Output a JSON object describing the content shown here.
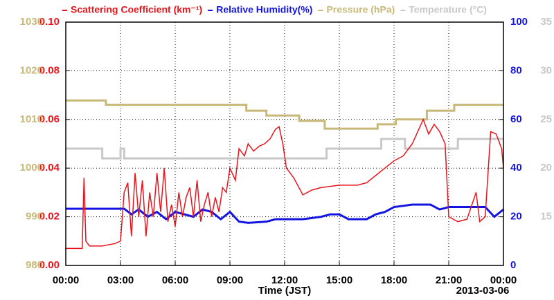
{
  "chart_data": {
    "type": "line",
    "xlabel": "Time (JST)",
    "date_label": "2013-03-06",
    "xlim": [
      0,
      24
    ],
    "xticks": [
      {
        "value": 0,
        "label": "00:00"
      },
      {
        "value": 3,
        "label": "03:00"
      },
      {
        "value": 6,
        "label": "06:00"
      },
      {
        "value": 9,
        "label": "09:00"
      },
      {
        "value": 12,
        "label": "12:00"
      },
      {
        "value": 15,
        "label": "15:00"
      },
      {
        "value": 18,
        "label": "18:00"
      },
      {
        "value": 21,
        "label": "21:00"
      },
      {
        "value": 24,
        "label": "00:00"
      }
    ],
    "grid": true,
    "ylim": [
      0,
      0.1
    ],
    "yticks": [
      {
        "value": 0,
        "label": "0.00"
      },
      {
        "value": 0.02,
        "label": "0.02"
      },
      {
        "value": 0.04,
        "label": "0.04"
      },
      {
        "value": 0.06,
        "label": "0.06"
      },
      {
        "value": 0.08,
        "label": "0.08"
      },
      {
        "value": 0.1,
        "label": "0.10"
      }
    ],
    "y2lim": [
      0,
      100
    ],
    "y2ticks": [
      0,
      20,
      40,
      60,
      80,
      100
    ],
    "y3lim": [
      980,
      1030
    ],
    "y3ticks": [
      980,
      990,
      1000,
      1010,
      1020,
      1030
    ],
    "y4lim": [
      10,
      35
    ],
    "y4ticks": [
      15,
      20,
      25,
      30,
      35
    ],
    "series": [
      {
        "name": "Scattering Coefficient (km⁻¹)",
        "color": "#e8141c",
        "axis": "y",
        "x": [
          0,
          0.9,
          1,
          1.1,
          1.3,
          2,
          2.7,
          3,
          3.2,
          3.4,
          3.6,
          3.8,
          4,
          4.2,
          4.4,
          4.6,
          4.8,
          5,
          5.2,
          5.4,
          5.6,
          5.8,
          6,
          6.2,
          6.4,
          6.6,
          6.8,
          7,
          7.2,
          7.4,
          7.6,
          7.8,
          8,
          8.2,
          8.4,
          8.6,
          8.8,
          9,
          9.3,
          9.5,
          9.8,
          10,
          10.3,
          10.6,
          10.9,
          11.2,
          11.5,
          11.7,
          11.9,
          12.1,
          12.5,
          13,
          13.5,
          14,
          15,
          16,
          16.5,
          17,
          17.5,
          18,
          18.5,
          19,
          19.3,
          19.6,
          19.9,
          20.2,
          20.5,
          20.8,
          21,
          21.5,
          22,
          22.5,
          22.7,
          23,
          23.3,
          23.6,
          23.9,
          24
        ],
        "values": [
          0.007,
          0.007,
          0.036,
          0.01,
          0.008,
          0.008,
          0.009,
          0.01,
          0.03,
          0.034,
          0.012,
          0.038,
          0.02,
          0.035,
          0.012,
          0.03,
          0.02,
          0.038,
          0.022,
          0.04,
          0.018,
          0.025,
          0.016,
          0.03,
          0.02,
          0.028,
          0.032,
          0.02,
          0.035,
          0.018,
          0.025,
          0.03,
          0.02,
          0.028,
          0.022,
          0.032,
          0.03,
          0.04,
          0.035,
          0.048,
          0.045,
          0.05,
          0.047,
          0.049,
          0.05,
          0.052,
          0.056,
          0.057,
          0.05,
          0.04,
          0.036,
          0.029,
          0.031,
          0.032,
          0.033,
          0.033,
          0.034,
          0.037,
          0.04,
          0.043,
          0.045,
          0.05,
          0.055,
          0.06,
          0.054,
          0.058,
          0.055,
          0.05,
          0.02,
          0.018,
          0.019,
          0.03,
          0.018,
          0.02,
          0.055,
          0.054,
          0.048,
          0.04
        ]
      },
      {
        "name": "Relative Humidity(%)",
        "color": "#1414e0",
        "axis": "y2",
        "x": [
          0,
          3.2,
          3.6,
          4,
          4.5,
          5,
          5.5,
          6,
          6.5,
          7,
          7.5,
          8,
          8.5,
          9,
          9.5,
          10,
          11,
          11.5,
          12,
          13,
          14,
          14.5,
          15,
          15.5,
          16.5,
          17,
          17.5,
          18,
          19,
          20,
          20.5,
          21,
          22,
          23,
          23.5,
          24
        ],
        "values": [
          23.3,
          23.3,
          21,
          23,
          20,
          22,
          19,
          22,
          21,
          20,
          23,
          22,
          19,
          22,
          18,
          17.5,
          18,
          19,
          19,
          19,
          20,
          21,
          21,
          19,
          19,
          21,
          22,
          24,
          25,
          25,
          23,
          24,
          24,
          24,
          20,
          23
        ]
      },
      {
        "name": "Pressure (hPa)",
        "color": "#c8b878",
        "axis": "y3",
        "x": [
          0,
          2.2,
          2.2,
          9.9,
          9.9,
          11,
          11,
          12.8,
          12.8,
          14.2,
          14.2,
          17.1,
          17.1,
          18.1,
          18.1,
          19.8,
          19.8,
          21.3,
          21.3,
          24
        ],
        "values": [
          1013.9,
          1013.9,
          1013,
          1013,
          1011.8,
          1011.8,
          1010.8,
          1010.8,
          1009.7,
          1009.7,
          1008.1,
          1008.1,
          1009,
          1009,
          1010,
          1010,
          1011.8,
          1011.8,
          1013,
          1013
        ]
      },
      {
        "name": "Temperature (°C)",
        "color": "#c8c8c8",
        "axis": "y4",
        "x": [
          0,
          2,
          2,
          3,
          3,
          3.2,
          3.2,
          14.3,
          14.3,
          17.3,
          17.3,
          18.6,
          18.6,
          21.5,
          21.5,
          24
        ],
        "values": [
          22,
          22,
          21,
          21,
          22,
          22,
          21,
          21,
          22,
          22,
          23,
          23,
          22,
          22,
          23,
          23
        ]
      }
    ]
  }
}
